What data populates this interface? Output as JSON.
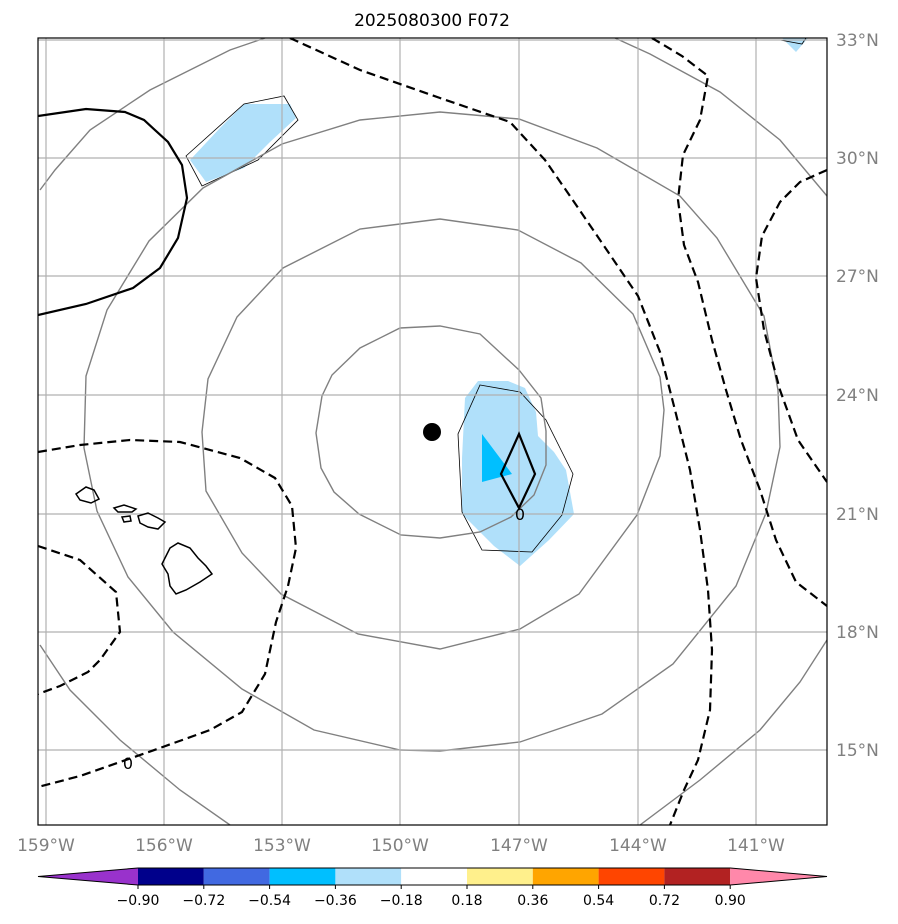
{
  "title": "2025080300 F072",
  "map": {
    "lon_range": [
      -159.05,
      -139.45
    ],
    "lat_range": [
      12.95,
      33.05
    ],
    "lon_ticks": [
      "159°W",
      "156°W",
      "153°W",
      "150°W",
      "147°W",
      "144°W",
      "141°W"
    ],
    "lat_ticks": [
      "33°N",
      "30°N",
      "27°N",
      "24°N",
      "21°N",
      "18°N",
      "15°N"
    ],
    "gridline_color": "#b0b0b0",
    "storm_center": {
      "lon": -149.2,
      "lat": 23.1,
      "marker": "filled-circle"
    },
    "contour_labels": [
      "0",
      "0"
    ]
  },
  "colorbar": {
    "labels": [
      "−0.90",
      "−0.72",
      "−0.54",
      "−0.36",
      "−0.18",
      "0.18",
      "0.36",
      "0.54",
      "0.72",
      "0.90"
    ],
    "colors": [
      "#9932cc",
      "#00008b",
      "#4169e1",
      "#00bfff",
      "#b0e0fa",
      "#ffffff",
      "#fff08c",
      "#ffa500",
      "#ff4500",
      "#b22222",
      "#ff88aa"
    ],
    "extend": "both"
  }
}
